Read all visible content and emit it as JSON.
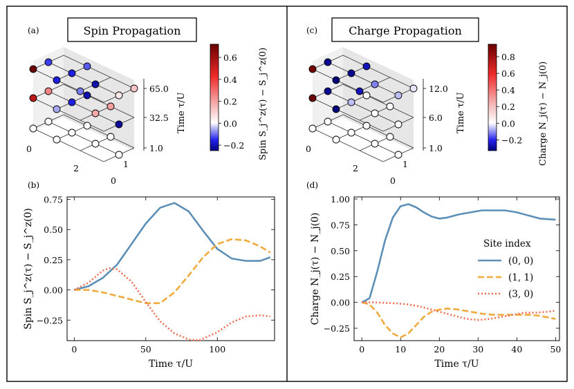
{
  "panels": {
    "a": {
      "label": "(a)",
      "title": "Spin Propagation"
    },
    "b": {
      "label": "(b)"
    },
    "c": {
      "label": "(c)",
      "title": "Charge Propagation"
    },
    "d": {
      "label": "(d)"
    }
  },
  "colors": {
    "series0": "#5b8fb8",
    "series1": "#f2a93b",
    "series2": "#f26b4e",
    "frame": "#000000"
  },
  "chart_data": [
    {
      "id": "a",
      "type": "scatter3d",
      "title": "Spin Propagation",
      "x_ticks": [
        "0",
        "2"
      ],
      "y_ticks": [
        "0",
        "1"
      ],
      "z_ticks": [
        "65.0",
        "32.5",
        "1.0"
      ],
      "z_label": "Time τ/U",
      "colorbar": {
        "label": "Spin S_j^z(τ) − S_j^z(0)",
        "ticks": [
          "0.6",
          "0.4",
          "0.2",
          "0.0",
          "−0.2"
        ],
        "range": [
          -0.25,
          0.72
        ]
      },
      "layers": [
        {
          "time": "65.0",
          "points": [
            {
              "site": [
                0,
                0
              ],
              "value": 0.72
            },
            {
              "site": [
                1,
                0
              ],
              "value": -0.15
            },
            {
              "site": [
                2,
                0
              ],
              "value": -0.08
            },
            {
              "site": [
                0,
                1
              ],
              "value": -0.12
            },
            {
              "site": [
                1,
                1
              ],
              "value": -0.15
            },
            {
              "site": [
                2,
                1
              ],
              "value": -0.2
            },
            {
              "site": [
                3,
                1
              ],
              "value": 0.05
            },
            {
              "site": [
                1,
                2
              ],
              "value": -0.1
            },
            {
              "site": [
                3,
                2
              ],
              "value": 0.12
            }
          ]
        },
        {
          "time": "32.5",
          "points": [
            {
              "site": [
                0,
                0
              ],
              "value": 0.55
            },
            {
              "site": [
                1,
                0
              ],
              "value": -0.05
            },
            {
              "site": [
                0,
                1
              ],
              "value": 0.25
            },
            {
              "site": [
                1,
                1
              ],
              "value": -0.15
            },
            {
              "site": [
                2,
                1
              ],
              "value": 0.18
            },
            {
              "site": [
                3,
                1
              ],
              "value": -0.22
            },
            {
              "site": [
                1,
                2
              ],
              "value": -0.2
            },
            {
              "site": [
                2,
                2
              ],
              "value": 0.2
            }
          ]
        },
        {
          "time": "1.0",
          "points": [
            {
              "site": [
                0,
                0
              ],
              "value": 0.0
            },
            {
              "site": [
                1,
                0
              ],
              "value": 0.0
            },
            {
              "site": [
                0,
                1
              ],
              "value": 0.0
            },
            {
              "site": [
                1,
                1
              ],
              "value": 0.0
            },
            {
              "site": [
                2,
                1
              ],
              "value": 0.0
            },
            {
              "site": [
                3,
                1
              ],
              "value": 0.0
            },
            {
              "site": [
                1,
                2
              ],
              "value": 0.0
            },
            {
              "site": [
                2,
                2
              ],
              "value": 0.0
            }
          ]
        }
      ]
    },
    {
      "id": "b",
      "type": "line",
      "xlabel": "Time τ/U",
      "ylabel": "Spin S_j^z(τ) − S_j^z(0)",
      "xlim": [
        -5,
        140
      ],
      "ylim": [
        -0.42,
        0.77
      ],
      "xticks": [
        0,
        50,
        100
      ],
      "yticks": [
        0.75,
        0.5,
        0.25,
        0.0,
        -0.25
      ],
      "ytick_labels": [
        "0.75",
        "0.50",
        "0.25",
        "0.00",
        "−0.25"
      ],
      "series": [
        {
          "name": "(0, 0)",
          "style": "solid",
          "x": [
            0,
            10,
            20,
            30,
            40,
            50,
            60,
            70,
            80,
            90,
            100,
            110,
            120,
            130,
            137
          ],
          "y": [
            0,
            0.03,
            0.1,
            0.21,
            0.38,
            0.55,
            0.68,
            0.72,
            0.65,
            0.49,
            0.34,
            0.26,
            0.24,
            0.24,
            0.27
          ]
        },
        {
          "name": "(1, 1)",
          "style": "dashed",
          "x": [
            0,
            10,
            20,
            30,
            40,
            50,
            60,
            70,
            80,
            90,
            100,
            110,
            120,
            130,
            137
          ],
          "y": [
            0,
            0.0,
            -0.02,
            -0.05,
            -0.08,
            -0.11,
            -0.11,
            -0.02,
            0.12,
            0.27,
            0.38,
            0.42,
            0.41,
            0.36,
            0.31
          ]
        },
        {
          "name": "(3, 0)",
          "style": "dotted",
          "x": [
            0,
            10,
            20,
            25,
            30,
            40,
            50,
            60,
            70,
            80,
            87,
            100,
            110,
            120,
            130,
            137
          ],
          "y": [
            0,
            0.06,
            0.16,
            0.18,
            0.17,
            0.07,
            -0.1,
            -0.26,
            -0.36,
            -0.41,
            -0.42,
            -0.35,
            -0.27,
            -0.22,
            -0.21,
            -0.22
          ]
        }
      ]
    },
    {
      "id": "c",
      "type": "scatter3d",
      "title": "Charge Propagation",
      "x_ticks": [
        "0",
        "2"
      ],
      "y_ticks": [
        "0",
        "1"
      ],
      "z_ticks": [
        "12.0",
        "6.0",
        "1.0"
      ],
      "z_label": "Time τ/U",
      "colorbar": {
        "label": "Charge N_j(τ) − N_j(0)",
        "ticks": [
          "0.8",
          "0.6",
          "0.4",
          "0.2",
          "0.0",
          "−0.2"
        ],
        "range": [
          -0.33,
          0.95
        ]
      },
      "layers": [
        {
          "time": "12.0",
          "points": [
            {
              "site": [
                0,
                0
              ],
              "value": 0.92
            },
            {
              "site": [
                1,
                0
              ],
              "value": -0.33
            },
            {
              "site": [
                2,
                0
              ],
              "value": -0.25
            },
            {
              "site": [
                0,
                1
              ],
              "value": -0.3
            },
            {
              "site": [
                1,
                1
              ],
              "value": -0.3
            },
            {
              "site": [
                2,
                1
              ],
              "value": -0.1
            },
            {
              "site": [
                3,
                1
              ],
              "value": -0.05
            },
            {
              "site": [
                1,
                2
              ],
              "value": -0.25
            },
            {
              "site": [
                3,
                2
              ],
              "value": -0.02
            }
          ]
        },
        {
          "time": "6.0",
          "points": [
            {
              "site": [
                0,
                0
              ],
              "value": 0.95
            },
            {
              "site": [
                1,
                0
              ],
              "value": -0.33
            },
            {
              "site": [
                0,
                1
              ],
              "value": -0.3
            },
            {
              "site": [
                1,
                1
              ],
              "value": -0.05
            },
            {
              "site": [
                2,
                1
              ],
              "value": 0.0
            },
            {
              "site": [
                3,
                1
              ],
              "value": 0.0
            },
            {
              "site": [
                1,
                2
              ],
              "value": 0.0
            },
            {
              "site": [
                2,
                2
              ],
              "value": 0.0
            }
          ]
        },
        {
          "time": "1.0",
          "points": [
            {
              "site": [
                0,
                0
              ],
              "value": 0.0
            },
            {
              "site": [
                1,
                0
              ],
              "value": 0.0
            },
            {
              "site": [
                0,
                1
              ],
              "value": 0.0
            },
            {
              "site": [
                1,
                1
              ],
              "value": 0.0
            },
            {
              "site": [
                2,
                1
              ],
              "value": 0.0
            },
            {
              "site": [
                3,
                1
              ],
              "value": 0.0
            },
            {
              "site": [
                1,
                2
              ],
              "value": 0.0
            },
            {
              "site": [
                2,
                2
              ],
              "value": 0.0
            }
          ]
        }
      ]
    },
    {
      "id": "d",
      "type": "line",
      "xlabel": "Time τ/U",
      "ylabel": "Charge N_j(τ) − N_j(0)",
      "xlim": [
        -2,
        51
      ],
      "ylim": [
        -0.37,
        1.02
      ],
      "xticks": [
        0,
        10,
        20,
        30,
        40,
        50
      ],
      "yticks": [
        1.0,
        0.75,
        0.5,
        0.25,
        0.0,
        -0.25
      ],
      "ytick_labels": [
        "1.00",
        "0.75",
        "0.50",
        "0.25",
        "0.00",
        "−0.25"
      ],
      "legend": {
        "title": "Site index",
        "placement": "right"
      },
      "series": [
        {
          "name": "(0, 0)",
          "style": "solid",
          "x": [
            0,
            2,
            4,
            6,
            8,
            10,
            12,
            14,
            16,
            18,
            20,
            22,
            25,
            28,
            31,
            34,
            37,
            40,
            43,
            46,
            50
          ],
          "y": [
            0,
            0.04,
            0.3,
            0.6,
            0.82,
            0.93,
            0.95,
            0.92,
            0.87,
            0.83,
            0.81,
            0.82,
            0.85,
            0.87,
            0.89,
            0.89,
            0.89,
            0.87,
            0.84,
            0.81,
            0.8
          ]
        },
        {
          "name": "(1, 1)",
          "style": "dashed",
          "x": [
            0,
            2,
            4,
            6,
            8,
            10,
            12,
            14,
            16,
            18,
            20,
            22,
            25,
            28,
            31,
            34,
            37,
            40,
            43,
            46,
            50
          ],
          "y": [
            0,
            -0.02,
            -0.1,
            -0.22,
            -0.3,
            -0.34,
            -0.3,
            -0.22,
            -0.14,
            -0.09,
            -0.07,
            -0.06,
            -0.07,
            -0.09,
            -0.11,
            -0.12,
            -0.12,
            -0.12,
            -0.12,
            -0.13,
            -0.16
          ]
        },
        {
          "name": "(3, 0)",
          "style": "dotted",
          "x": [
            0,
            3,
            6,
            9,
            12,
            15,
            18,
            21,
            24,
            27,
            30,
            33,
            36,
            39,
            42,
            45,
            48,
            50
          ],
          "y": [
            0,
            0,
            -0.005,
            -0.01,
            -0.02,
            -0.04,
            -0.07,
            -0.1,
            -0.13,
            -0.16,
            -0.17,
            -0.16,
            -0.14,
            -0.12,
            -0.1,
            -0.1,
            -0.09,
            -0.08
          ]
        }
      ]
    }
  ]
}
